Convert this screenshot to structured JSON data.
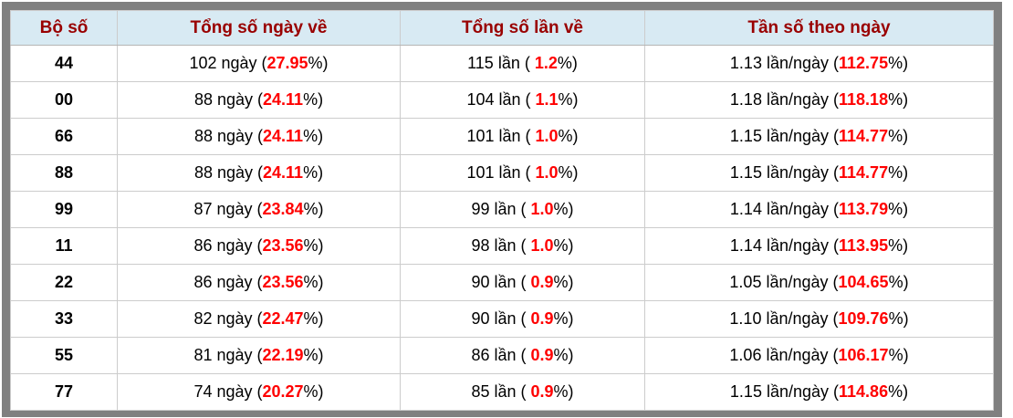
{
  "colors": {
    "frame_gray": "#808080",
    "header_bg": "#d8eaf3",
    "header_text": "#990000",
    "accent_red": "#ff0000",
    "grid_line": "#cccccc",
    "body_text": "#000000"
  },
  "table": {
    "columns": {
      "pair": "Bộ số",
      "days": "Tổng số ngày về",
      "times": "Tổng số lần về",
      "freq": "Tần số theo ngày"
    },
    "pct_close": "%)",
    "rows": [
      {
        "pair": "44",
        "days": "102 ngày (",
        "days_pct": "27.95",
        "times": "115 lần ( ",
        "times_pct": "1.2",
        "freq": "1.13 lần/ngày (",
        "freq_pct": "112.75"
      },
      {
        "pair": "00",
        "days": "88 ngày (",
        "days_pct": "24.11",
        "times": "104 lần ( ",
        "times_pct": "1.1",
        "freq": "1.18 lần/ngày (",
        "freq_pct": "118.18"
      },
      {
        "pair": "66",
        "days": "88 ngày (",
        "days_pct": "24.11",
        "times": "101 lần ( ",
        "times_pct": "1.0",
        "freq": "1.15 lần/ngày (",
        "freq_pct": "114.77"
      },
      {
        "pair": "88",
        "days": "88 ngày (",
        "days_pct": "24.11",
        "times": "101 lần ( ",
        "times_pct": "1.0",
        "freq": "1.15 lần/ngày (",
        "freq_pct": "114.77"
      },
      {
        "pair": "99",
        "days": "87 ngày (",
        "days_pct": "23.84",
        "times": "99 lần ( ",
        "times_pct": "1.0",
        "freq": "1.14 lần/ngày (",
        "freq_pct": "113.79"
      },
      {
        "pair": "11",
        "days": "86 ngày (",
        "days_pct": "23.56",
        "times": "98 lần ( ",
        "times_pct": "1.0",
        "freq": "1.14 lần/ngày (",
        "freq_pct": "113.95"
      },
      {
        "pair": "22",
        "days": "86 ngày (",
        "days_pct": "23.56",
        "times": "90 lần ( ",
        "times_pct": "0.9",
        "freq": "1.05 lần/ngày (",
        "freq_pct": "104.65"
      },
      {
        "pair": "33",
        "days": "82 ngày (",
        "days_pct": "22.47",
        "times": "90 lần ( ",
        "times_pct": "0.9",
        "freq": "1.10 lần/ngày (",
        "freq_pct": "109.76"
      },
      {
        "pair": "55",
        "days": "81 ngày (",
        "days_pct": "22.19",
        "times": "86 lần ( ",
        "times_pct": "0.9",
        "freq": "1.06 lần/ngày (",
        "freq_pct": "106.17"
      },
      {
        "pair": "77",
        "days": "74 ngày (",
        "days_pct": "20.27",
        "times": "85 lần ( ",
        "times_pct": "0.9",
        "freq": "1.15 lần/ngày (",
        "freq_pct": "114.86"
      }
    ]
  }
}
